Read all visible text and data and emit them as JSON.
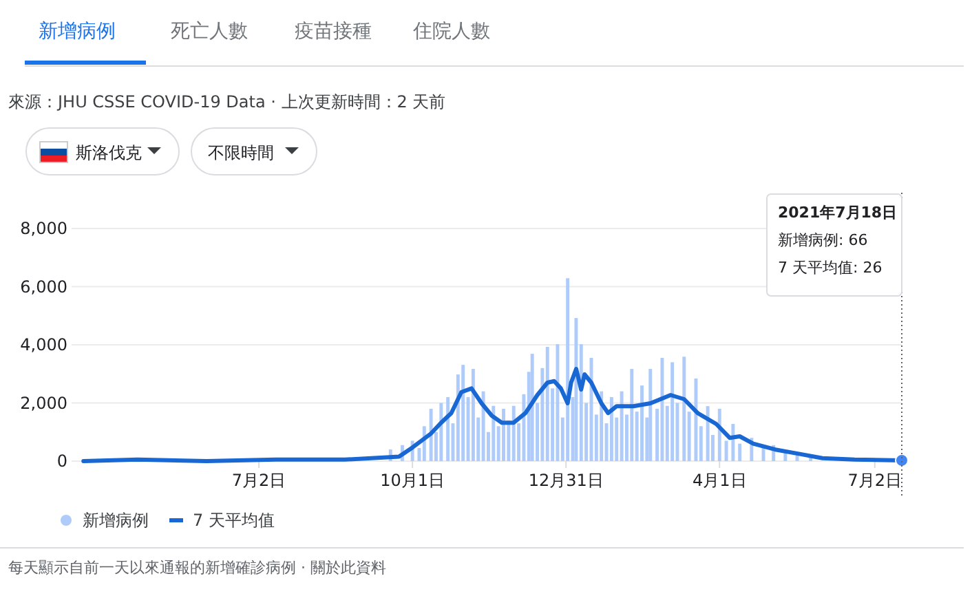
{
  "chart_data": {
    "type": "bar",
    "annotations": [
      "新增病例",
      "死亡人數",
      "疫苗接種",
      "住院人數",
      "來源：JHU CSSE COVID-19 Data · 上次更新時間：2 天前",
      "斯洛伐克",
      "不限時間",
      "每天顯示自前一天以來通報的新增確診病例 · 關於此資料",
      "2021年7月18日",
      "新增病例: 66",
      "7 天平均值: 26"
    ],
    "xlim": [
      "2020-03-13",
      "2021-07-18"
    ],
    "xticks": [
      {
        "value": "2020-07-02",
        "label": "7月2日"
      },
      {
        "value": "2020-10-01",
        "label": "10月1日"
      },
      {
        "value": "2020-12-31",
        "label": "12月31日"
      },
      {
        "value": "2021-04-01",
        "label": "4月1日"
      },
      {
        "value": "2021-07-02",
        "label": "7月2日"
      }
    ],
    "ylim": [
      0,
      8000
    ],
    "yticks": [
      {
        "value": 0,
        "label": "0"
      },
      {
        "value": 2000,
        "label": "2,000"
      },
      {
        "value": 4000,
        "label": "4,000"
      },
      {
        "value": 6000,
        "label": "6,000"
      },
      {
        "value": 8000,
        "label": "8,000"
      }
    ],
    "grid": "y",
    "legend": "bottom left",
    "ref_lines": [
      {
        "axis": "x",
        "value": "2021-07-18",
        "label": null,
        "color": "#5f6368",
        "line_style": "dotted"
      }
    ],
    "series": [
      {
        "name": "新增病例",
        "color": "#aecbfa",
        "x": [
          "2020-09-18",
          "2020-09-25",
          "2020-10-01",
          "2020-10-05",
          "2020-10-08",
          "2020-10-12",
          "2020-10-15",
          "2020-10-18",
          "2020-10-22",
          "2020-10-25",
          "2020-10-28",
          "2020-10-31",
          "2020-11-03",
          "2020-11-06",
          "2020-11-09",
          "2020-11-12",
          "2020-11-15",
          "2020-11-18",
          "2020-11-21",
          "2020-11-24",
          "2020-11-27",
          "2020-11-30",
          "2020-12-03",
          "2020-12-06",
          "2020-12-09",
          "2020-12-11",
          "2020-12-14",
          "2020-12-17",
          "2020-12-20",
          "2020-12-23",
          "2020-12-26",
          "2020-12-29",
          "2021-01-01",
          "2021-01-04",
          "2021-01-06",
          "2021-01-09",
          "2021-01-12",
          "2021-01-15",
          "2021-01-18",
          "2021-01-21",
          "2021-01-24",
          "2021-01-27",
          "2021-01-30",
          "2021-02-02",
          "2021-02-05",
          "2021-02-08",
          "2021-02-11",
          "2021-02-14",
          "2021-02-17",
          "2021-02-19",
          "2021-02-23",
          "2021-02-26",
          "2021-03-01",
          "2021-03-04",
          "2021-03-07",
          "2021-03-11",
          "2021-03-14",
          "2021-03-18",
          "2021-03-21",
          "2021-03-25",
          "2021-03-28",
          "2021-04-01",
          "2021-04-05",
          "2021-04-09",
          "2021-04-13",
          "2021-04-20",
          "2021-04-27",
          "2021-05-03",
          "2021-05-10",
          "2021-05-17",
          "2021-05-25"
        ],
        "values": [
          400,
          550,
          700,
          450,
          1200,
          1800,
          1000,
          2000,
          2200,
          1300,
          2980,
          3310,
          2200,
          3170,
          1500,
          2400,
          1000,
          1900,
          1200,
          1800,
          1400,
          1900,
          1300,
          2300,
          3070,
          3690,
          2000,
          3200,
          3930,
          2500,
          4020,
          1500,
          6290,
          2200,
          4920,
          4020,
          2000,
          3550,
          1600,
          2400,
          1300,
          2200,
          1500,
          2400,
          1600,
          3170,
          1700,
          2600,
          1500,
          3170,
          1800,
          3550,
          1900,
          3400,
          2000,
          3590,
          1700,
          2840,
          1200,
          1890,
          900,
          1800,
          700,
          1280,
          600,
          800,
          450,
          550,
          300,
          250,
          200
        ]
      },
      {
        "name": "7 天平均值",
        "type": "line",
        "color": "#1967d2",
        "x": [
          "2020-03-20",
          "2020-04-21",
          "2020-06-01",
          "2020-07-12",
          "2020-08-22",
          "2020-09-23",
          "2020-10-01",
          "2020-10-12",
          "2020-10-18",
          "2020-10-24",
          "2020-10-30",
          "2020-11-05",
          "2020-11-11",
          "2020-11-17",
          "2020-11-23",
          "2020-11-30",
          "2020-12-07",
          "2020-12-14",
          "2020-12-20",
          "2020-12-24",
          "2020-12-28",
          "2021-01-01",
          "2021-01-03",
          "2021-01-06",
          "2021-01-09",
          "2021-01-11",
          "2021-01-15",
          "2021-01-21",
          "2021-01-25",
          "2021-01-30",
          "2021-02-09",
          "2021-02-19",
          "2021-03-03",
          "2021-03-11",
          "2021-03-19",
          "2021-03-30",
          "2021-04-07",
          "2021-04-13",
          "2021-04-21",
          "2021-05-04",
          "2021-05-18",
          "2021-06-01",
          "2021-06-20",
          "2021-07-18"
        ],
        "values": [
          0,
          50,
          0,
          50,
          50,
          150,
          470,
          950,
          1320,
          1650,
          2370,
          2500,
          1990,
          1560,
          1320,
          1320,
          1650,
          2270,
          2700,
          2750,
          2500,
          1990,
          2700,
          3170,
          2460,
          2980,
          2700,
          1990,
          1650,
          1890,
          1890,
          1990,
          2270,
          2130,
          1650,
          1280,
          800,
          850,
          600,
          400,
          250,
          100,
          50,
          26
        ]
      }
    ]
  }
}
